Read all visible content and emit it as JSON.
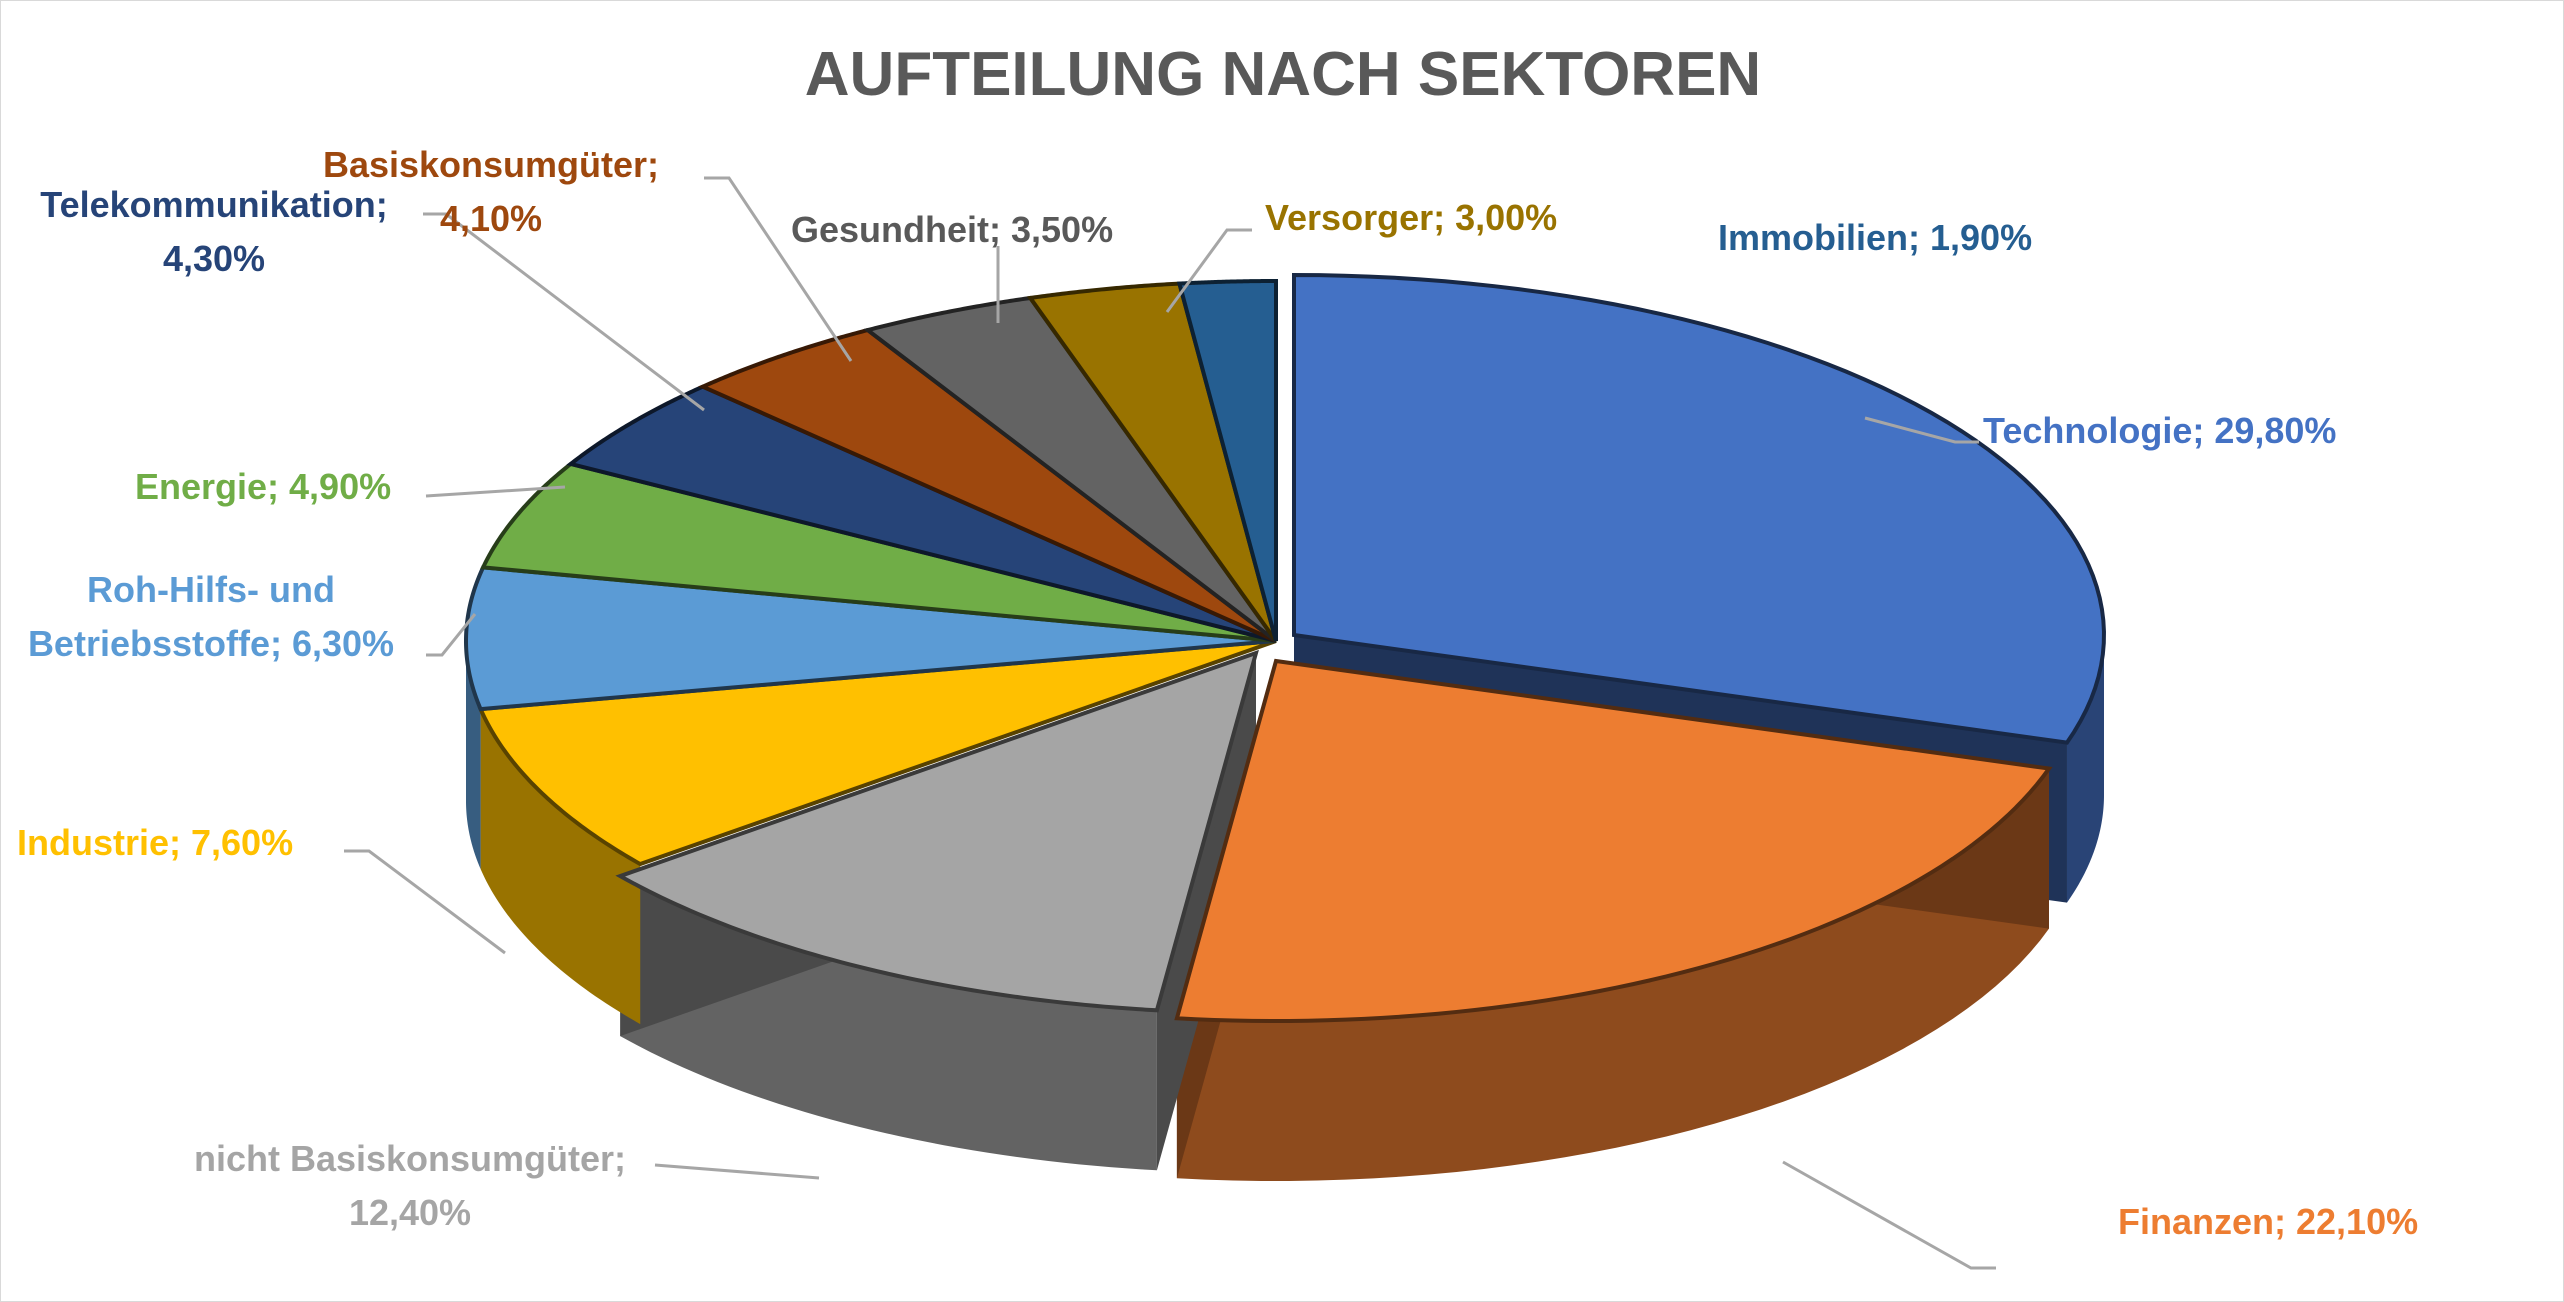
{
  "chart_data": {
    "type": "pie",
    "style": "3d-exploded",
    "title": "AUFTEILUNG NACH SEKTOREN",
    "unit": "%",
    "slices": [
      {
        "label": "Technologie",
        "value": 29.8,
        "display": "Technologie; 29,80%",
        "color": "#4472C4"
      },
      {
        "label": "Finanzen",
        "value": 22.1,
        "display": "Finanzen; 22,10%",
        "color": "#ED7D31"
      },
      {
        "label": "nicht Basiskonsumgüter",
        "value": 12.4,
        "display_line1": "nicht Basiskonsumgüter;",
        "display_line2": "12,40%",
        "color": "#A5A5A5"
      },
      {
        "label": "Industrie",
        "value": 7.6,
        "display": "Industrie; 7,60%",
        "color": "#FFC000"
      },
      {
        "label": "Roh-Hilfs- und Betriebsstoffe",
        "value": 6.3,
        "display_line1": "Roh-Hilfs- und",
        "display_line2": "Betriebsstoffe; 6,30%",
        "color": "#5B9BD5"
      },
      {
        "label": "Energie",
        "value": 4.9,
        "display": "Energie; 4,90%",
        "color": "#70AD47"
      },
      {
        "label": "Telekommunikation",
        "value": 4.3,
        "display_line1": "Telekommunikation;",
        "display_line2": "4,30%",
        "color": "#264478"
      },
      {
        "label": "Basiskonsumgüter",
        "value": 4.1,
        "display_line1": "Basiskonsumgüter;",
        "display_line2": "4,10%",
        "color": "#9E480E"
      },
      {
        "label": "Gesundheit",
        "value": 3.5,
        "display": "Gesundheit; 3,50%",
        "color": "#636363"
      },
      {
        "label": "Versorger",
        "value": 3.0,
        "display": "Versorger; 3,00%",
        "color": "#997300"
      },
      {
        "label": "Immobilien",
        "value": 1.9,
        "display": "Immobilien; 1,90%",
        "color": "#255E91"
      }
    ],
    "legend": "none",
    "data_labels": "outside-with-leader-lines"
  }
}
